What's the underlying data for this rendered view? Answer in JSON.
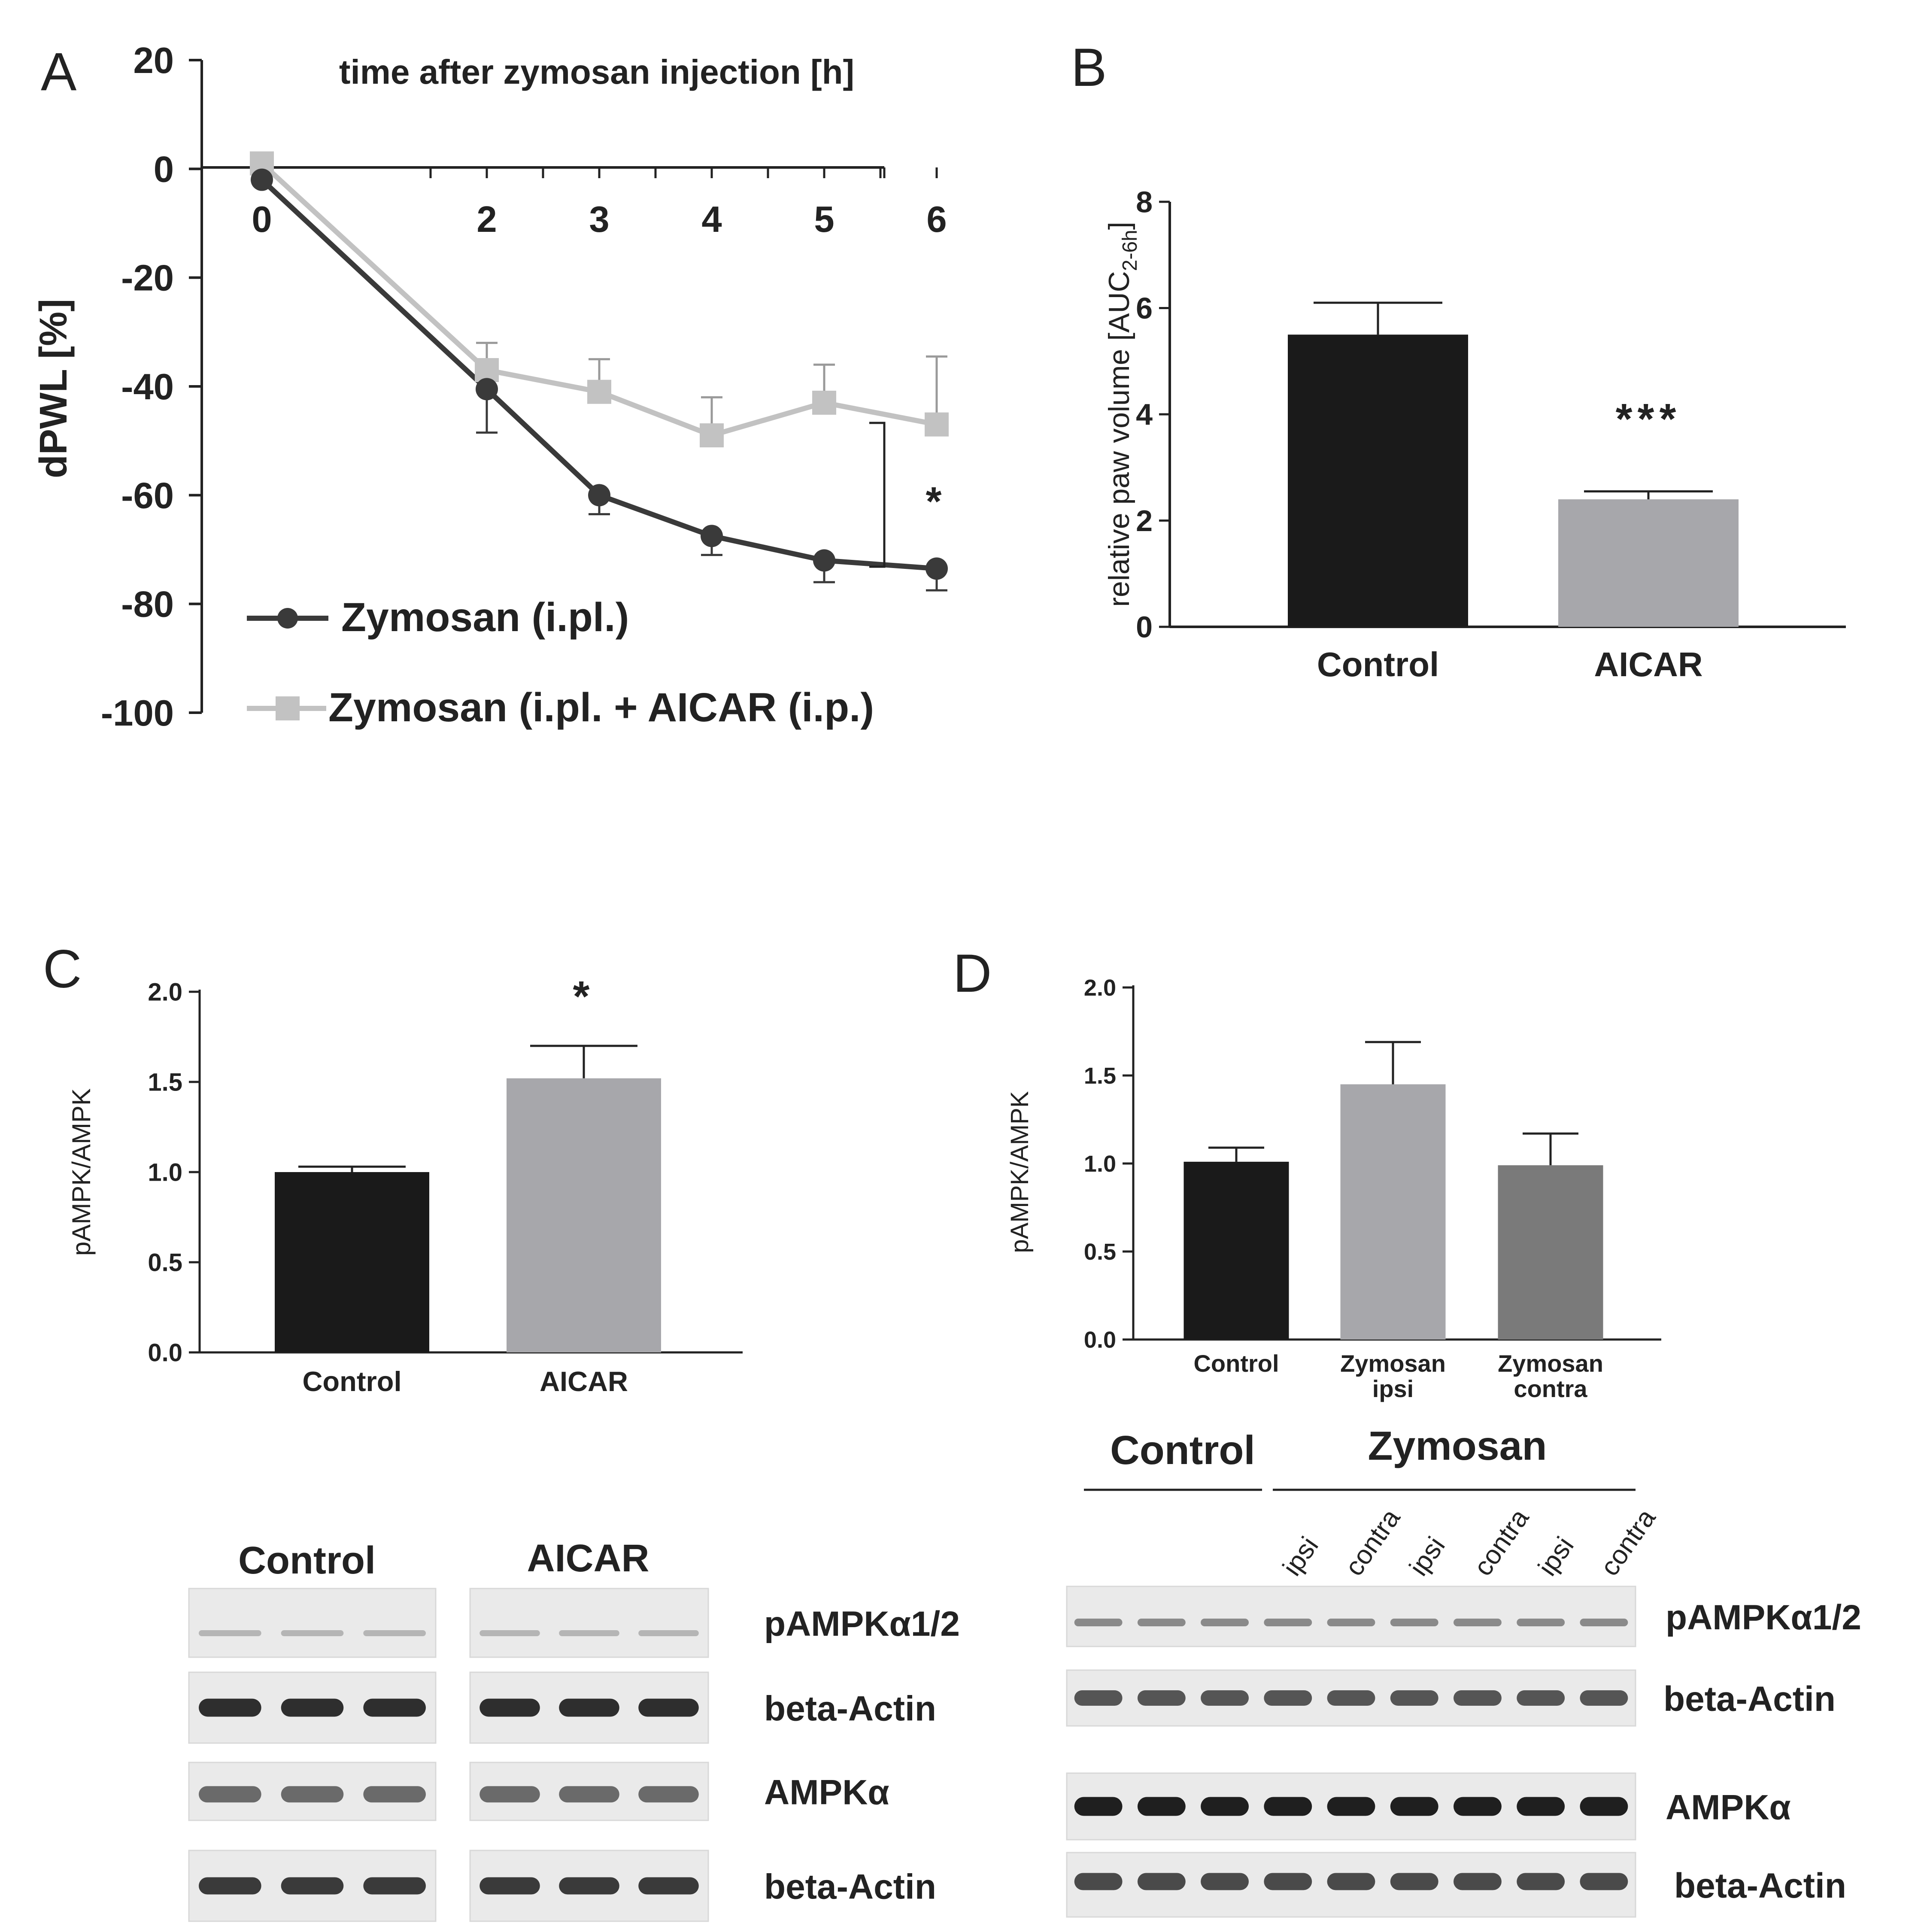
{
  "panels": {
    "A": "A",
    "B": "B",
    "C": "C",
    "D": "D"
  },
  "colors": {
    "black": "#1a1a1a",
    "dark_gray_line": "#3a3a3a",
    "light_gray": "#c2c2c2",
    "mid_gray": "#a7a7ab",
    "darker_gray": "#7a7a7a"
  },
  "chart_data": [
    {
      "panel": "A",
      "type": "line",
      "title": "time after zymosan injection [h]",
      "xlabel": "",
      "ylabel": "dPWL [%]",
      "x": [
        0,
        2,
        3,
        4,
        5,
        6
      ],
      "x_tick_labels": [
        "0",
        "2",
        "3",
        "4",
        "5",
        "6"
      ],
      "ylim": [
        -100,
        20
      ],
      "y_ticks": [
        20,
        0,
        -20,
        -40,
        -60,
        -80,
        -100
      ],
      "series": [
        {
          "name": "Zymosan (i.pl.)",
          "marker": "circle",
          "color": "#3a3a3a",
          "values": [
            -2,
            -40.5,
            -60,
            -67.5,
            -72,
            -73.5
          ],
          "errors": [
            0,
            8,
            3.5,
            3.5,
            4,
            4
          ]
        },
        {
          "name": "Zymosan (i.pl. + AICAR (i.p.)",
          "marker": "square",
          "color": "#c2c2c2",
          "values": [
            1,
            -37,
            -41,
            -49,
            -43,
            -47
          ],
          "errors": [
            0,
            5,
            6,
            7,
            7,
            12.5
          ]
        }
      ],
      "annotation": "*",
      "grid": false,
      "legend_position": "bottom-left"
    },
    {
      "panel": "B",
      "type": "bar",
      "categories": [
        "Control",
        "AICAR"
      ],
      "values": [
        5.5,
        2.4
      ],
      "errors": [
        0.6,
        0.15
      ],
      "colors": [
        "#1a1a1a",
        "#a7a7ab"
      ],
      "ylabel_main": "relative paw volume [AUC",
      "ylabel_sub": "2-6h",
      "ylabel_end": "]",
      "ylim": [
        0,
        8
      ],
      "y_ticks": [
        0,
        2,
        4,
        6,
        8
      ],
      "annotations": [
        "",
        "***"
      ],
      "grid": false
    },
    {
      "panel": "C",
      "type": "bar",
      "categories": [
        "Control",
        "AICAR"
      ],
      "values": [
        1.0,
        1.52
      ],
      "errors": [
        0.03,
        0.18
      ],
      "colors": [
        "#1a1a1a",
        "#a7a7ab"
      ],
      "ylabel": "pAMPK/AMPK",
      "ylim": [
        0,
        2
      ],
      "y_ticks": [
        "0.0",
        "0.5",
        "1.0",
        "1.5",
        "2.0"
      ],
      "annotations": [
        "",
        "*"
      ],
      "grid": false
    },
    {
      "panel": "D",
      "type": "bar",
      "categories": [
        "Control",
        "Zymosan ipsi",
        "Zymosan contra"
      ],
      "category_lines": [
        [
          "Control"
        ],
        [
          "Zymosan",
          "ipsi"
        ],
        [
          "Zymosan",
          "contra"
        ]
      ],
      "values": [
        1.01,
        1.45,
        0.99
      ],
      "errors": [
        0.08,
        0.24,
        0.18
      ],
      "colors": [
        "#1a1a1a",
        "#a7a7ab",
        "#7a7a7a"
      ],
      "ylabel": "pAMPK/AMPK",
      "ylim": [
        0,
        2
      ],
      "y_ticks": [
        "0.0",
        "0.5",
        "1.0",
        "1.5",
        "2.0"
      ],
      "grid": false
    }
  ],
  "western_C": {
    "group_labels": [
      "Control",
      "AICAR"
    ],
    "rows": [
      "pAMPKα1/2",
      "beta-Actin",
      "AMPKα",
      "beta-Actin"
    ]
  },
  "western_D": {
    "group_labels": [
      "Control",
      "Zymosan"
    ],
    "lane_labels": [
      "ipsi",
      "contra",
      "ipsi",
      "contra",
      "ipsi",
      "contra"
    ],
    "rows": [
      "pAMPKα1/2",
      "beta-Actin",
      "AMPKα",
      "beta-Actin"
    ]
  }
}
